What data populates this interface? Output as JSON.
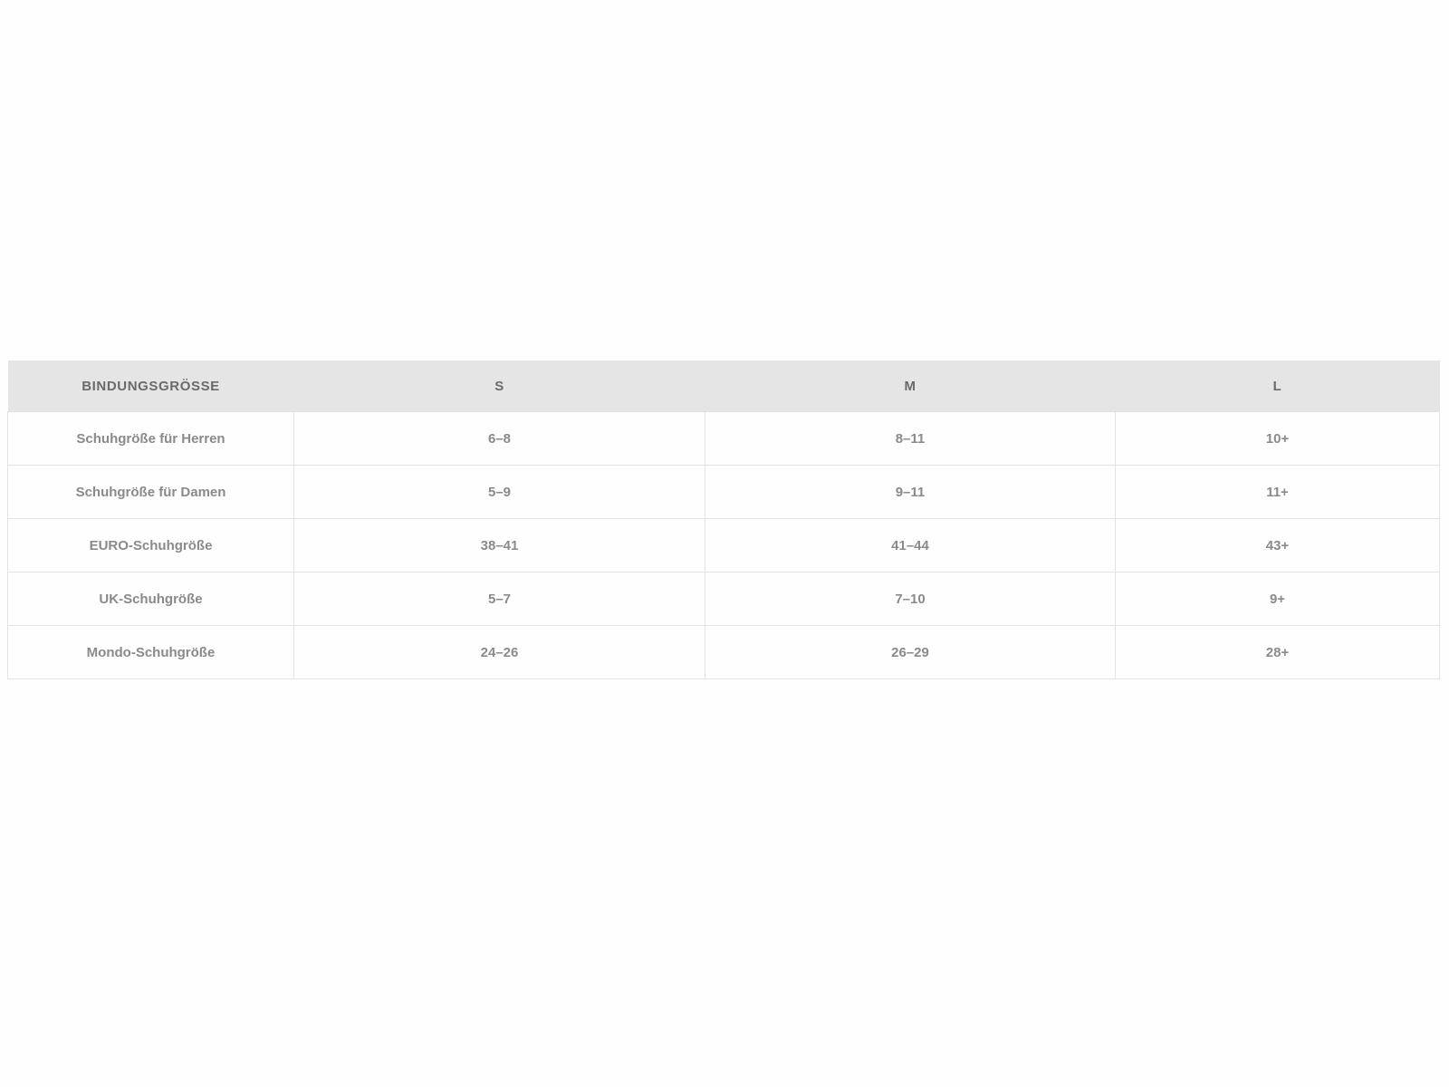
{
  "table": {
    "headers": [
      "BINDUNGSGRÖSSE",
      "S",
      "M",
      "L"
    ],
    "rows": [
      [
        "Schuhgröße für Herren",
        "6–8",
        "8–11",
        "10+"
      ],
      [
        "Schuhgröße für Damen",
        "5–9",
        "9–11",
        "11+"
      ],
      [
        "EURO-Schuhgröße",
        "38–41",
        "41–44",
        "43+"
      ],
      [
        "UK-Schuhgröße",
        "5–7",
        "7–10",
        "9+"
      ],
      [
        "Mondo-Schuhgröße",
        "24–26",
        "26–29",
        "28+"
      ]
    ]
  }
}
